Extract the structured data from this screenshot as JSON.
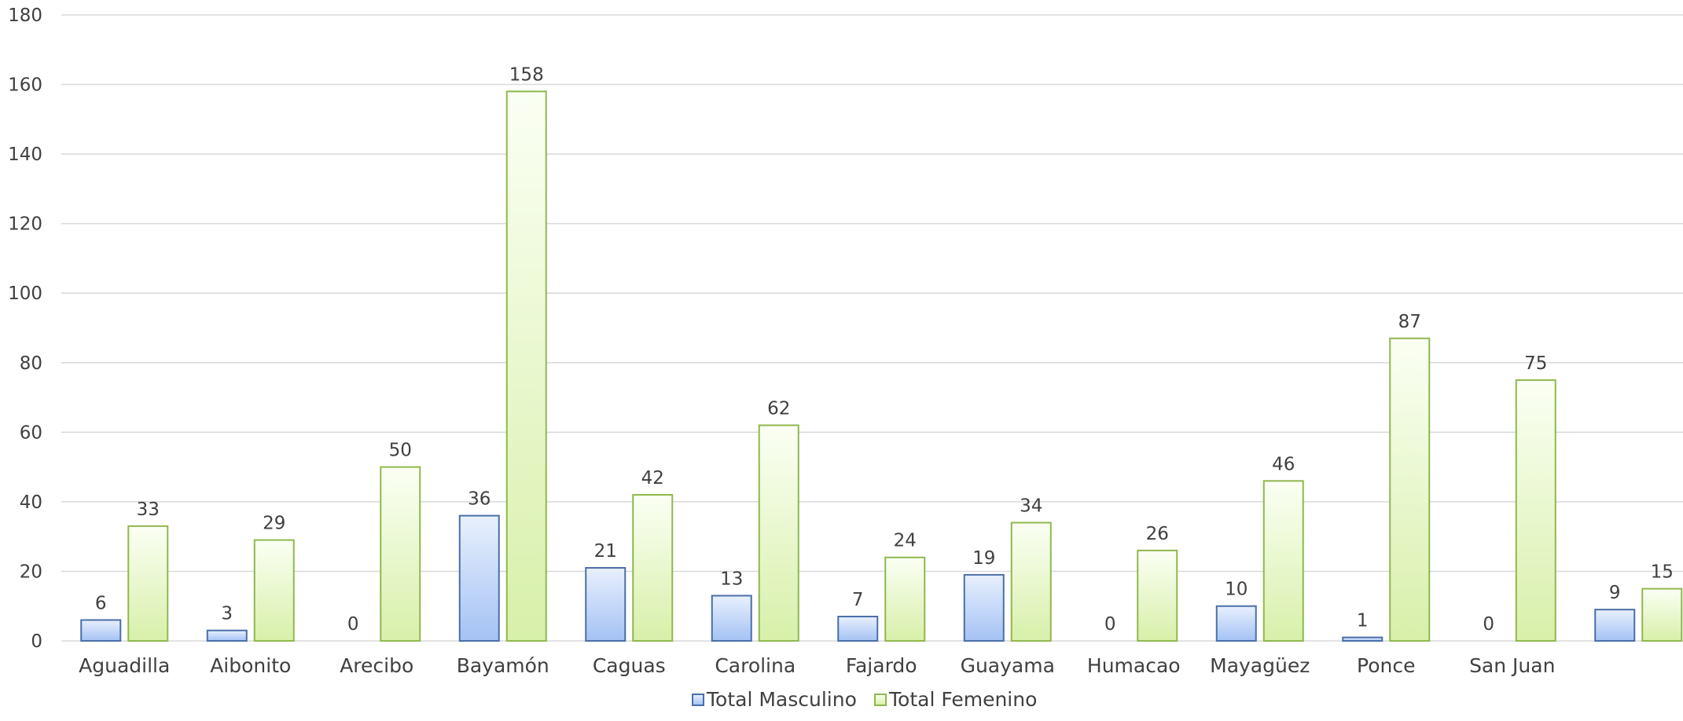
{
  "chart_data": {
    "type": "bar",
    "categories": [
      "Aguadilla",
      "Aibonito",
      "Arecibo",
      "Bayamón",
      "Caguas",
      "Carolina",
      "Fajardo",
      "Guayama",
      "Humacao",
      "Mayagüez",
      "Ponce",
      "San Juan",
      ""
    ],
    "series": [
      {
        "name": "Total Masculino",
        "values": [
          6,
          3,
          0,
          36,
          21,
          13,
          7,
          19,
          0,
          10,
          1,
          0,
          9
        ],
        "color": "#a4c2f4",
        "stroke": "#4a6fa8"
      },
      {
        "name": "Total Femenino",
        "values": [
          33,
          29,
          50,
          158,
          42,
          62,
          24,
          34,
          26,
          46,
          87,
          75,
          15
        ],
        "color": "#e4f6c4",
        "stroke": "#8fb84e"
      }
    ],
    "ylim": [
      0,
      180
    ],
    "yticks": [
      0,
      20,
      40,
      60,
      80,
      100,
      120,
      140,
      160,
      180
    ],
    "grid": true,
    "legend": "bottom"
  }
}
